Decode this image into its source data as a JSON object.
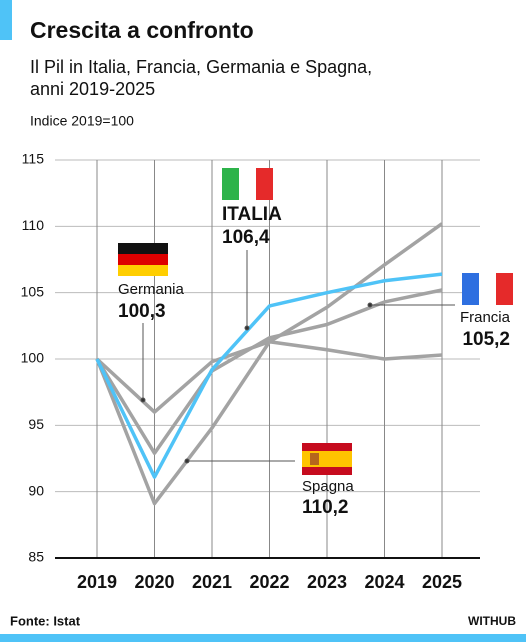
{
  "chart_data": {
    "type": "line",
    "title": "Crescita a confronto",
    "subtitle": [
      "Il Pil in Italia, Francia, Germania e Spagna,",
      "anni 2019-2025"
    ],
    "y_label": "Indice 2019=100",
    "source": "Fonte: Istat",
    "brand": "WITHUB",
    "categories": [
      "2019",
      "2020",
      "2021",
      "2022",
      "2023",
      "2024",
      "2025"
    ],
    "ylim": [
      85,
      115
    ],
    "yticks": [
      85,
      90,
      95,
      100,
      105,
      110,
      115
    ],
    "grid": true,
    "series": [
      {
        "name": "Germania",
        "color": "#a3a3a3",
        "values": [
          100,
          96.0,
          99.8,
          101.3,
          100.7,
          100.0,
          100.3
        ],
        "value_labels": [
          null,
          null,
          null,
          null,
          null,
          null,
          "100,3"
        ]
      },
      {
        "name": "Francia",
        "color": "#a3a3a3",
        "values": [
          100,
          92.9,
          99.1,
          101.6,
          102.6,
          104.3,
          105.2
        ],
        "value_labels": [
          null,
          null,
          null,
          null,
          null,
          null,
          "105,2"
        ]
      },
      {
        "name": "Spagna",
        "color": "#a3a3a3",
        "values": [
          100,
          89.1,
          94.8,
          101.3,
          103.9,
          107.1,
          110.2
        ],
        "value_labels": [
          null,
          null,
          null,
          null,
          null,
          null,
          "110,2"
        ]
      },
      {
        "name": "ITALIA",
        "color": "#4fc3f7",
        "values": [
          100,
          91.1,
          99.2,
          104.0,
          105.0,
          105.9,
          106.4
        ],
        "value_labels": [
          null,
          null,
          null,
          null,
          null,
          null,
          "106,4"
        ]
      }
    ]
  }
}
